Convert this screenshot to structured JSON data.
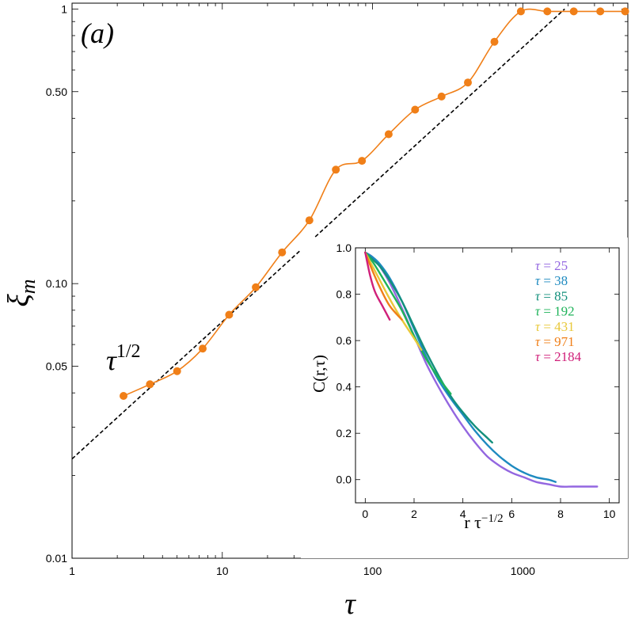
{
  "chart_data": [
    {
      "type": "scatter",
      "panel_label": "(a)",
      "xlabel": "τ",
      "ylabel": "ξ_m",
      "xscale": "log",
      "yscale": "log",
      "xlim": [
        1,
        5000
      ],
      "ylim": [
        0.01,
        1.05
      ],
      "xticks": [
        1,
        10,
        100,
        1000
      ],
      "xtick_labels": [
        "1",
        "10",
        "100",
        "1000"
      ],
      "yticks": [
        0.01,
        0.05,
        0.1,
        0.5,
        1
      ],
      "ytick_labels": [
        "0.01",
        "0.05",
        "0.10",
        "0.50",
        "1"
      ],
      "grid": false,
      "series": [
        {
          "color": "#f07f18",
          "style": "markers+smooth-line",
          "x": [
            2.2,
            3.3,
            5.0,
            7.4,
            11.1,
            16.7,
            25,
            38,
            57,
            85,
            128,
            192,
            288,
            431,
            647,
            971,
            1456,
            2184,
            3276,
            4800
          ],
          "y": [
            0.039,
            0.043,
            0.048,
            0.058,
            0.077,
            0.097,
            0.13,
            0.17,
            0.26,
            0.28,
            0.35,
            0.43,
            0.48,
            0.54,
            0.76,
            0.98,
            0.98,
            0.98,
            0.98,
            0.98
          ]
        },
        {
          "color": "#000000",
          "style": "dashed",
          "x": [
            1,
            1900
          ],
          "y": [
            0.023,
            1.0
          ]
        }
      ],
      "annotations": [
        {
          "text": "τ^{1/2}",
          "base": "τ",
          "sup": "1/2"
        }
      ]
    },
    {
      "type": "line",
      "inset": true,
      "xlabel": "r τ^{-1/2}",
      "xlabel_base": "r τ",
      "xlabel_sup": "−1/2",
      "ylabel": "C(r,τ)",
      "xlim": [
        -0.4,
        10.4
      ],
      "ylim": [
        -0.1,
        1.0
      ],
      "xticks": [
        0,
        2,
        4,
        6,
        8,
        10
      ],
      "xtick_labels": [
        "0",
        "2",
        "4",
        "6",
        "8",
        "10"
      ],
      "yticks": [
        0.0,
        0.2,
        0.4,
        0.6,
        0.8,
        1.0
      ],
      "ytick_labels": [
        "0.0",
        "0.2",
        "0.4",
        "0.6",
        "0.8",
        "1.0"
      ],
      "grid": false,
      "legend_placement": "top-right",
      "series": [
        {
          "name": "τ = 25",
          "label_lhs": "τ",
          "label_rhs": "= 25",
          "color": "#9366e0",
          "x": [
            0.0,
            0.3,
            0.6,
            1.0,
            1.5,
            2.0,
            2.5,
            3.0,
            3.5,
            4.0,
            4.5,
            5.0,
            5.5,
            6.0,
            6.5,
            7.0,
            7.5,
            8.0,
            8.5,
            9.0,
            9.5
          ],
          "y": [
            0.98,
            0.96,
            0.92,
            0.85,
            0.74,
            0.62,
            0.5,
            0.4,
            0.31,
            0.23,
            0.16,
            0.1,
            0.06,
            0.03,
            0.01,
            -0.01,
            -0.02,
            -0.03,
            -0.03,
            -0.03,
            -0.03
          ]
        },
        {
          "name": "τ = 38",
          "label_lhs": "τ",
          "label_rhs": "= 38",
          "color": "#1e8ac0",
          "x": [
            0.0,
            0.3,
            0.6,
            1.0,
            1.5,
            2.0,
            2.5,
            3.0,
            3.5,
            4.0,
            4.5,
            5.0,
            5.5,
            6.0,
            6.5,
            7.0,
            7.5,
            7.8
          ],
          "y": [
            0.98,
            0.96,
            0.93,
            0.87,
            0.77,
            0.65,
            0.53,
            0.43,
            0.35,
            0.28,
            0.21,
            0.15,
            0.1,
            0.06,
            0.03,
            0.01,
            0.0,
            -0.01
          ]
        },
        {
          "name": "τ = 85",
          "label_lhs": "τ",
          "label_rhs": "= 85",
          "color": "#13907c",
          "x": [
            0.0,
            0.3,
            0.6,
            1.0,
            1.5,
            2.0,
            2.5,
            3.0,
            3.5,
            4.0,
            4.5,
            5.0,
            5.2
          ],
          "y": [
            0.98,
            0.95,
            0.92,
            0.86,
            0.77,
            0.66,
            0.55,
            0.45,
            0.36,
            0.29,
            0.23,
            0.18,
            0.16
          ]
        },
        {
          "name": "τ = 192",
          "label_lhs": "τ",
          "label_rhs": "= 192",
          "color": "#1fb35a",
          "x": [
            0.0,
            0.3,
            0.6,
            1.0,
            1.5,
            2.0,
            2.5,
            3.0,
            3.5
          ],
          "y": [
            0.98,
            0.94,
            0.89,
            0.82,
            0.73,
            0.62,
            0.52,
            0.44,
            0.37
          ]
        },
        {
          "name": "τ = 431",
          "label_lhs": "τ",
          "label_rhs": "= 431",
          "color": "#e8c83a",
          "x": [
            0.0,
            0.3,
            0.6,
            1.0,
            1.5,
            2.0,
            2.3
          ],
          "y": [
            0.98,
            0.92,
            0.86,
            0.78,
            0.69,
            0.61,
            0.56
          ]
        },
        {
          "name": "τ = 971",
          "label_lhs": "τ",
          "label_rhs": "= 971",
          "color": "#f07f18",
          "x": [
            0.0,
            0.3,
            0.6,
            1.0,
            1.5
          ],
          "y": [
            0.98,
            0.9,
            0.83,
            0.75,
            0.69
          ]
        },
        {
          "name": "τ = 2184",
          "label_lhs": "τ",
          "label_rhs": "= 2184",
          "color": "#d0207a",
          "x": [
            0.0,
            0.2,
            0.4,
            0.7,
            1.0
          ],
          "y": [
            0.98,
            0.88,
            0.81,
            0.75,
            0.69
          ]
        }
      ]
    }
  ]
}
